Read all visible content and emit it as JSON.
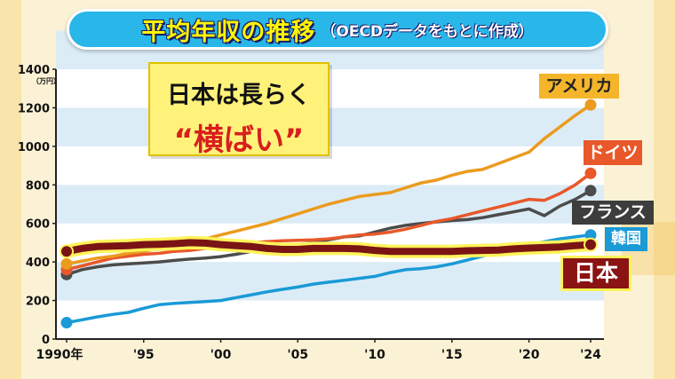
{
  "title": {
    "main": "平均年収の推移",
    "sub": "（OECDデータをもとに作成）"
  },
  "callout": {
    "line1": "日本は長らく",
    "line2": "“横ばい”"
  },
  "chart_data": {
    "type": "line",
    "unit_label": "（万円）",
    "ylim": [
      0,
      1400
    ],
    "yticks": [
      "0",
      "200",
      "400",
      "600",
      "800",
      "1000",
      "1200",
      "1400"
    ],
    "xlim": [
      1990,
      2024
    ],
    "xticks": [
      {
        "x": 1990,
        "label": "1990年"
      },
      {
        "x": 1995,
        "label": "'95"
      },
      {
        "x": 2000,
        "label": "'00"
      },
      {
        "x": 2005,
        "label": "'05"
      },
      {
        "x": 2010,
        "label": "'10"
      },
      {
        "x": 2015,
        "label": "'15"
      },
      {
        "x": 2020,
        "label": "'20"
      },
      {
        "x": 2024,
        "label": "'24"
      }
    ],
    "grid_bands": true,
    "series": [
      {
        "name": "韓国",
        "color": "#1a9ad6",
        "x": [
          1990,
          1991,
          1992,
          1993,
          1994,
          1995,
          1996,
          1997,
          1998,
          1999,
          2000,
          2001,
          2002,
          2003,
          2004,
          2005,
          2006,
          2007,
          2008,
          2009,
          2010,
          2011,
          2012,
          2013,
          2014,
          2015,
          2016,
          2017,
          2018,
          2019,
          2020,
          2021,
          2022,
          2023,
          2024
        ],
        "y": [
          85,
          100,
          115,
          128,
          138,
          160,
          178,
          185,
          190,
          195,
          200,
          215,
          230,
          245,
          258,
          270,
          285,
          295,
          305,
          315,
          325,
          345,
          360,
          365,
          375,
          390,
          410,
          430,
          450,
          470,
          490,
          505,
          520,
          530,
          540
        ]
      },
      {
        "name": "フランス",
        "color": "#4c4c4c",
        "x": [
          1990,
          1991,
          1992,
          1993,
          1994,
          1995,
          1996,
          1997,
          1998,
          1999,
          2000,
          2001,
          2002,
          2003,
          2004,
          2005,
          2006,
          2007,
          2008,
          2009,
          2010,
          2011,
          2012,
          2013,
          2014,
          2015,
          2016,
          2017,
          2018,
          2019,
          2020,
          2021,
          2022,
          2023,
          2024
        ],
        "y": [
          335,
          360,
          375,
          385,
          390,
          395,
          400,
          408,
          415,
          420,
          428,
          440,
          455,
          470,
          480,
          490,
          500,
          515,
          530,
          535,
          555,
          575,
          590,
          600,
          608,
          615,
          620,
          630,
          645,
          660,
          675,
          640,
          690,
          725,
          770
        ]
      },
      {
        "name": "ドイツ",
        "color": "#e8582a",
        "x": [
          1990,
          1991,
          1992,
          1993,
          1994,
          1995,
          1996,
          1997,
          1998,
          1999,
          2000,
          2001,
          2002,
          2003,
          2004,
          2005,
          2006,
          2007,
          2008,
          2009,
          2010,
          2011,
          2012,
          2013,
          2014,
          2015,
          2016,
          2017,
          2018,
          2019,
          2020,
          2021,
          2022,
          2023,
          2024
        ],
        "y": [
          360,
          380,
          400,
          420,
          430,
          440,
          445,
          455,
          460,
          470,
          480,
          490,
          500,
          505,
          510,
          512,
          515,
          520,
          530,
          540,
          545,
          555,
          570,
          590,
          610,
          625,
          645,
          665,
          685,
          705,
          725,
          720,
          755,
          800,
          860
        ]
      },
      {
        "name": "アメリカ",
        "color": "#eb9b1e",
        "x": [
          1990,
          1991,
          1992,
          1993,
          1994,
          1995,
          1996,
          1997,
          1998,
          1999,
          2000,
          2001,
          2002,
          2003,
          2004,
          2005,
          2006,
          2007,
          2008,
          2009,
          2010,
          2011,
          2012,
          2013,
          2014,
          2015,
          2016,
          2017,
          2018,
          2019,
          2020,
          2021,
          2022,
          2023,
          2024
        ],
        "y": [
          390,
          405,
          420,
          430,
          445,
          455,
          470,
          485,
          500,
          520,
          540,
          560,
          580,
          600,
          625,
          650,
          675,
          700,
          720,
          740,
          750,
          760,
          785,
          810,
          825,
          850,
          870,
          880,
          910,
          940,
          970,
          1040,
          1100,
          1160,
          1215
        ]
      },
      {
        "name": "日本",
        "color": "#7a1414",
        "x": [
          1990,
          1991,
          1992,
          1993,
          1994,
          1995,
          1996,
          1997,
          1998,
          1999,
          2000,
          2001,
          2002,
          2003,
          2004,
          2005,
          2006,
          2007,
          2008,
          2009,
          2010,
          2011,
          2012,
          2013,
          2014,
          2015,
          2016,
          2017,
          2018,
          2019,
          2020,
          2021,
          2022,
          2023,
          2024
        ],
        "y": [
          455,
          470,
          480,
          482,
          485,
          490,
          492,
          495,
          500,
          498,
          490,
          485,
          480,
          470,
          465,
          465,
          470,
          470,
          470,
          468,
          460,
          455,
          455,
          455,
          455,
          455,
          458,
          460,
          462,
          468,
          472,
          475,
          478,
          485,
          490
        ]
      }
    ],
    "end_labels": [
      {
        "series": "アメリカ",
        "text": "アメリカ",
        "bg": "#f4b52a",
        "fg": "#222222"
      },
      {
        "series": "ドイツ",
        "text": "ドイツ",
        "bg": "#e8582a",
        "fg": "#ffffff"
      },
      {
        "series": "フランス",
        "text": "フランス",
        "bg": "#3d3d3d",
        "fg": "#ffffff"
      },
      {
        "series": "韓国",
        "text": "韓国",
        "bg": "#1a9ad6",
        "fg": "#ffffff"
      },
      {
        "series": "日本",
        "text": "日本",
        "bg": "#8a1313",
        "fg": "#ffffff"
      }
    ]
  }
}
